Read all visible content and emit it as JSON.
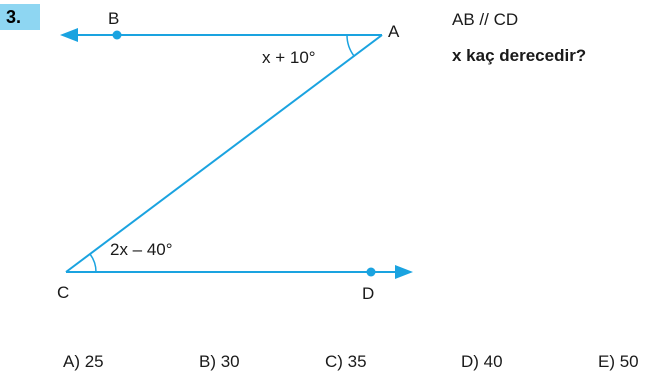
{
  "question": {
    "number": "3.",
    "given": "AB // CD",
    "prompt": "x kaç derecedir?"
  },
  "figure": {
    "point_labels": {
      "a": "A",
      "b": "B",
      "c": "C",
      "d": "D"
    },
    "angle_at_a": "x + 10°",
    "angle_at_c": "2x – 40°",
    "line_color": "#1aa3e0"
  },
  "options": [
    {
      "label": "A) 25"
    },
    {
      "label": "B) 30"
    },
    {
      "label": "C) 35"
    },
    {
      "label": "D) 40"
    },
    {
      "label": "E) 50"
    }
  ]
}
